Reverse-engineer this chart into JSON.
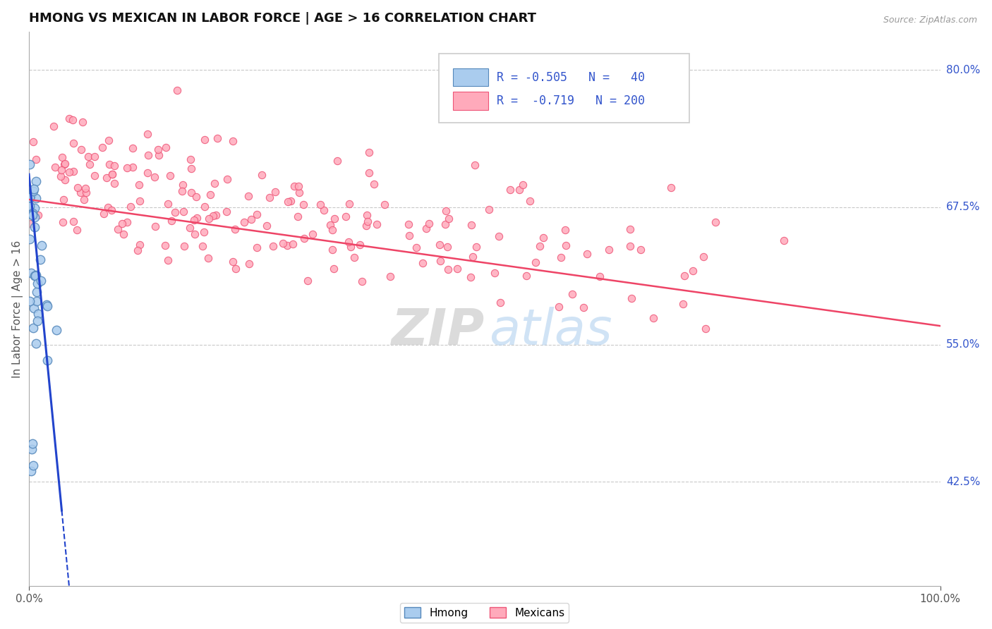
{
  "title": "HMONG VS MEXICAN IN LABOR FORCE | AGE > 16 CORRELATION CHART",
  "source": "Source: ZipAtlas.com",
  "ylabel": "In Labor Force | Age > 16",
  "xlim": [
    0.0,
    1.0
  ],
  "ylim": [
    0.33,
    0.835
  ],
  "yticks": [
    0.425,
    0.55,
    0.675,
    0.8
  ],
  "ytick_labels": [
    "42.5%",
    "55.0%",
    "67.5%",
    "80.0%"
  ],
  "background_color": "#ffffff",
  "grid_color": "#bbbbbb",
  "hmong_color": "#aaccee",
  "hmong_edge_color": "#5588bb",
  "mexican_color": "#ffaabb",
  "mexican_edge_color": "#ee5577",
  "hmong_line_color": "#2244cc",
  "mexican_line_color": "#ee4466",
  "label_color": "#3355cc",
  "axis_color": "#555555",
  "title_color": "#111111",
  "legend_label_hmong": "Hmong",
  "legend_label_mexican": "Mexicans",
  "watermark_zip": "ZIP",
  "watermark_atlas": "atlas",
  "marker_size_hmong": 80,
  "marker_size_mexican": 55
}
